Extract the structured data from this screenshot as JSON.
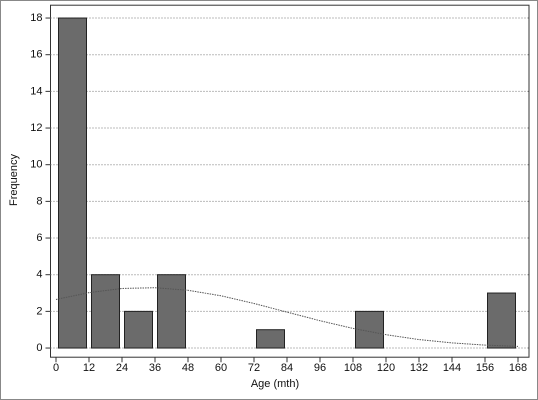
{
  "chart_data": {
    "type": "histogram",
    "bins": [
      0,
      12,
      24,
      36,
      48,
      60,
      72,
      84,
      96,
      108,
      120,
      132,
      144,
      156,
      168
    ],
    "values": [
      18,
      4,
      2,
      4,
      0,
      0,
      1,
      0,
      0,
      2,
      0,
      0,
      0,
      3
    ],
    "color": "#6b6b6b",
    "curve": {
      "x": [
        0,
        12,
        24,
        36,
        48,
        60,
        72,
        84,
        96,
        108,
        120,
        132,
        144,
        156,
        168
      ],
      "values": [
        2.65,
        3.02,
        3.25,
        3.29,
        3.15,
        2.85,
        2.43,
        1.96,
        1.49,
        1.07,
        0.73,
        0.46,
        0.28,
        0.16,
        0.09
      ],
      "color": "#555555"
    },
    "xlabel": "Age (mth)",
    "ylabel": "Frequency",
    "xlim": [
      -2,
      172
    ],
    "ylim": [
      -0.5,
      18.7
    ],
    "xticks": [
      0,
      12,
      24,
      36,
      48,
      60,
      72,
      84,
      96,
      108,
      120,
      132,
      144,
      156,
      168
    ],
    "yticks": [
      0,
      2,
      4,
      6,
      8,
      10,
      12,
      14,
      16,
      18
    ],
    "grid": true
  }
}
